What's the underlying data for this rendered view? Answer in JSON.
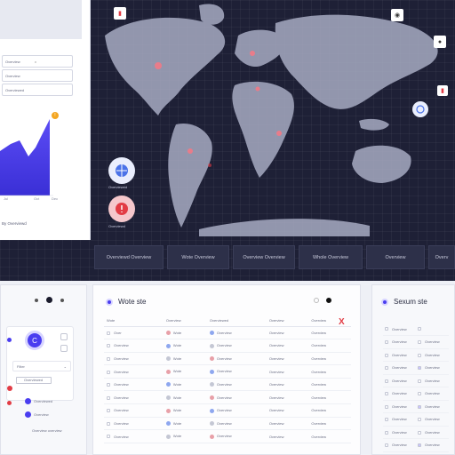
{
  "top": {
    "left_panel": {
      "fields": [
        {
          "label": "Overview",
          "marker": "v"
        },
        {
          "label": "Overview"
        },
        {
          "label": "Overviewed"
        }
      ],
      "chart_x_labels": [
        "Jul",
        "Oct",
        "Dec"
      ],
      "badge": "!",
      "caption": "By Overviewd"
    },
    "map": {
      "fab_upper_label": "Overviewed",
      "fab_lower_label": "Overviewd",
      "corner_top_left": "▮",
      "corner_top_right": "◉",
      "corner_right": "●",
      "corner_right_small": "▮"
    },
    "pills": [
      "Overviewd Overview",
      "Wote Overview",
      "Overview Overview",
      "Whole Overview",
      "Overview",
      "Overv"
    ]
  },
  "bottom": {
    "left": {
      "avatar_letter": "C",
      "filter_label": "Filter",
      "filter_value": "Overviewed",
      "list": [
        "Overviewed",
        "Overview"
      ],
      "footer": "Overview overview"
    },
    "mid": {
      "title": "Wote ste",
      "close_mark": "X",
      "columns": [
        "Wote",
        "Overview",
        "Overviewed",
        "Overview",
        "Overview"
      ],
      "rows": [
        [
          "Over",
          "Wote",
          "Overview",
          "Overview",
          "Overview"
        ],
        [
          "Overview",
          "Wote",
          "Overview",
          "Overview",
          "Overview"
        ],
        [
          "Overview",
          "Wote",
          "Overview",
          "Overview",
          "Overview"
        ],
        [
          "Overview",
          "Wote",
          "Overview",
          "Overview",
          "Overview"
        ],
        [
          "Overview",
          "Wote",
          "Overview",
          "Overview",
          "Overview"
        ],
        [
          "Overview",
          "Wote",
          "Overview",
          "Overview",
          "Overview"
        ],
        [
          "Overview",
          "Wote",
          "Overview",
          "Overview",
          "Overview"
        ],
        [
          "Overview",
          "Wote",
          "Overview",
          "Overview",
          "Overview"
        ],
        [
          "Overview",
          "Wote",
          "Overview",
          "Overview",
          "Overview"
        ]
      ]
    },
    "right": {
      "title": "Sexum ste",
      "rows": [
        [
          "Overview",
          ""
        ],
        [
          "Overview",
          "Overview"
        ],
        [
          "Overview",
          "Overview"
        ],
        [
          "Overview",
          "Overview"
        ],
        [
          "Overview",
          "Overview"
        ],
        [
          "Overview",
          "Overview"
        ],
        [
          "Overview",
          "Overview"
        ],
        [
          "Overview",
          "Overview"
        ],
        [
          "Overview",
          "Overview"
        ],
        [
          "Overview",
          "Overview"
        ]
      ]
    }
  },
  "colors": {
    "accent": "#4a3df0",
    "danger": "#e23c45",
    "dark": "#1e2036",
    "warning": "#f4a622"
  }
}
